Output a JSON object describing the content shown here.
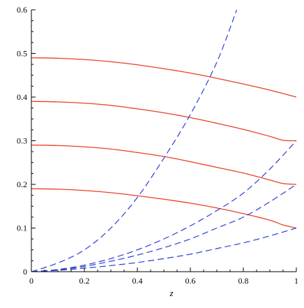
{
  "chart_data": {
    "type": "line",
    "xlabel": "z",
    "ylabel": "",
    "title": "",
    "xlim": [
      0,
      1
    ],
    "ylim": [
      0,
      0.6
    ],
    "x_ticks": [
      "0",
      "0.2",
      "0.4",
      "0.6",
      "0.8",
      "1"
    ],
    "y_ticks": [
      "0",
      "0.1",
      "0.2",
      "0.3",
      "0.4",
      "0.5",
      "0.6"
    ],
    "x_tick_values": [
      0,
      0.2,
      0.4,
      0.6,
      0.8,
      1
    ],
    "y_tick_values": [
      0,
      0.1,
      0.2,
      0.3,
      0.4,
      0.5,
      0.6
    ],
    "x_minor_step": 0.05,
    "y_minor_step": 0.025,
    "grid": false,
    "colors": {
      "solid": "#e8402a",
      "dashed": "#2b3fd6",
      "axis": "#000000"
    },
    "series": [
      {
        "style": "solid",
        "color": "#e8402a",
        "x": [
          0,
          0.1,
          0.2,
          0.3,
          0.4,
          0.5,
          0.6,
          0.7,
          0.8,
          0.9,
          1.0
        ],
        "y": [
          0.49,
          0.489,
          0.486,
          0.481,
          0.474,
          0.465,
          0.455,
          0.443,
          0.43,
          0.416,
          0.4
        ]
      },
      {
        "style": "solid",
        "color": "#e8402a",
        "x": [
          0,
          0.1,
          0.2,
          0.3,
          0.4,
          0.5,
          0.6,
          0.7,
          0.8,
          0.9,
          0.95,
          1.0
        ],
        "y": [
          0.39,
          0.389,
          0.386,
          0.381,
          0.373,
          0.364,
          0.353,
          0.34,
          0.326,
          0.31,
          0.301,
          0.3
        ]
      },
      {
        "style": "solid",
        "color": "#e8402a",
        "x": [
          0,
          0.1,
          0.2,
          0.3,
          0.4,
          0.5,
          0.6,
          0.7,
          0.8,
          0.9,
          0.95,
          1.0
        ],
        "y": [
          0.29,
          0.289,
          0.286,
          0.281,
          0.273,
          0.264,
          0.252,
          0.239,
          0.226,
          0.21,
          0.202,
          0.2
        ]
      },
      {
        "style": "solid",
        "color": "#e8402a",
        "x": [
          0,
          0.1,
          0.2,
          0.3,
          0.4,
          0.5,
          0.6,
          0.7,
          0.8,
          0.9,
          0.95,
          1.0
        ],
        "y": [
          0.19,
          0.189,
          0.186,
          0.181,
          0.174,
          0.166,
          0.157,
          0.146,
          0.133,
          0.118,
          0.107,
          0.1
        ]
      },
      {
        "style": "dashed",
        "color": "#2b3fd6",
        "x": [
          0,
          0.1,
          0.2,
          0.3,
          0.4,
          0.5,
          0.6,
          0.7,
          0.775
        ],
        "y": [
          0,
          0.02,
          0.05,
          0.1,
          0.17,
          0.26,
          0.36,
          0.48,
          0.6
        ]
      },
      {
        "style": "dashed",
        "color": "#2b3fd6",
        "x": [
          0,
          0.1,
          0.2,
          0.3,
          0.4,
          0.5,
          0.6,
          0.7,
          0.8,
          0.9,
          1.0
        ],
        "y": [
          0,
          0.005,
          0.015,
          0.03,
          0.05,
          0.075,
          0.105,
          0.14,
          0.18,
          0.235,
          0.3
        ]
      },
      {
        "style": "dashed",
        "color": "#2b3fd6",
        "x": [
          0,
          0.1,
          0.2,
          0.3,
          0.4,
          0.5,
          0.6,
          0.7,
          0.8,
          0.9,
          1.0
        ],
        "y": [
          0,
          0.004,
          0.012,
          0.024,
          0.038,
          0.055,
          0.075,
          0.1,
          0.125,
          0.16,
          0.2
        ]
      },
      {
        "style": "dashed",
        "color": "#2b3fd6",
        "x": [
          0,
          0.1,
          0.2,
          0.3,
          0.4,
          0.5,
          0.6,
          0.7,
          0.8,
          0.9,
          1.0
        ],
        "y": [
          0,
          0.003,
          0.008,
          0.014,
          0.021,
          0.03,
          0.04,
          0.053,
          0.066,
          0.082,
          0.1
        ]
      }
    ]
  }
}
